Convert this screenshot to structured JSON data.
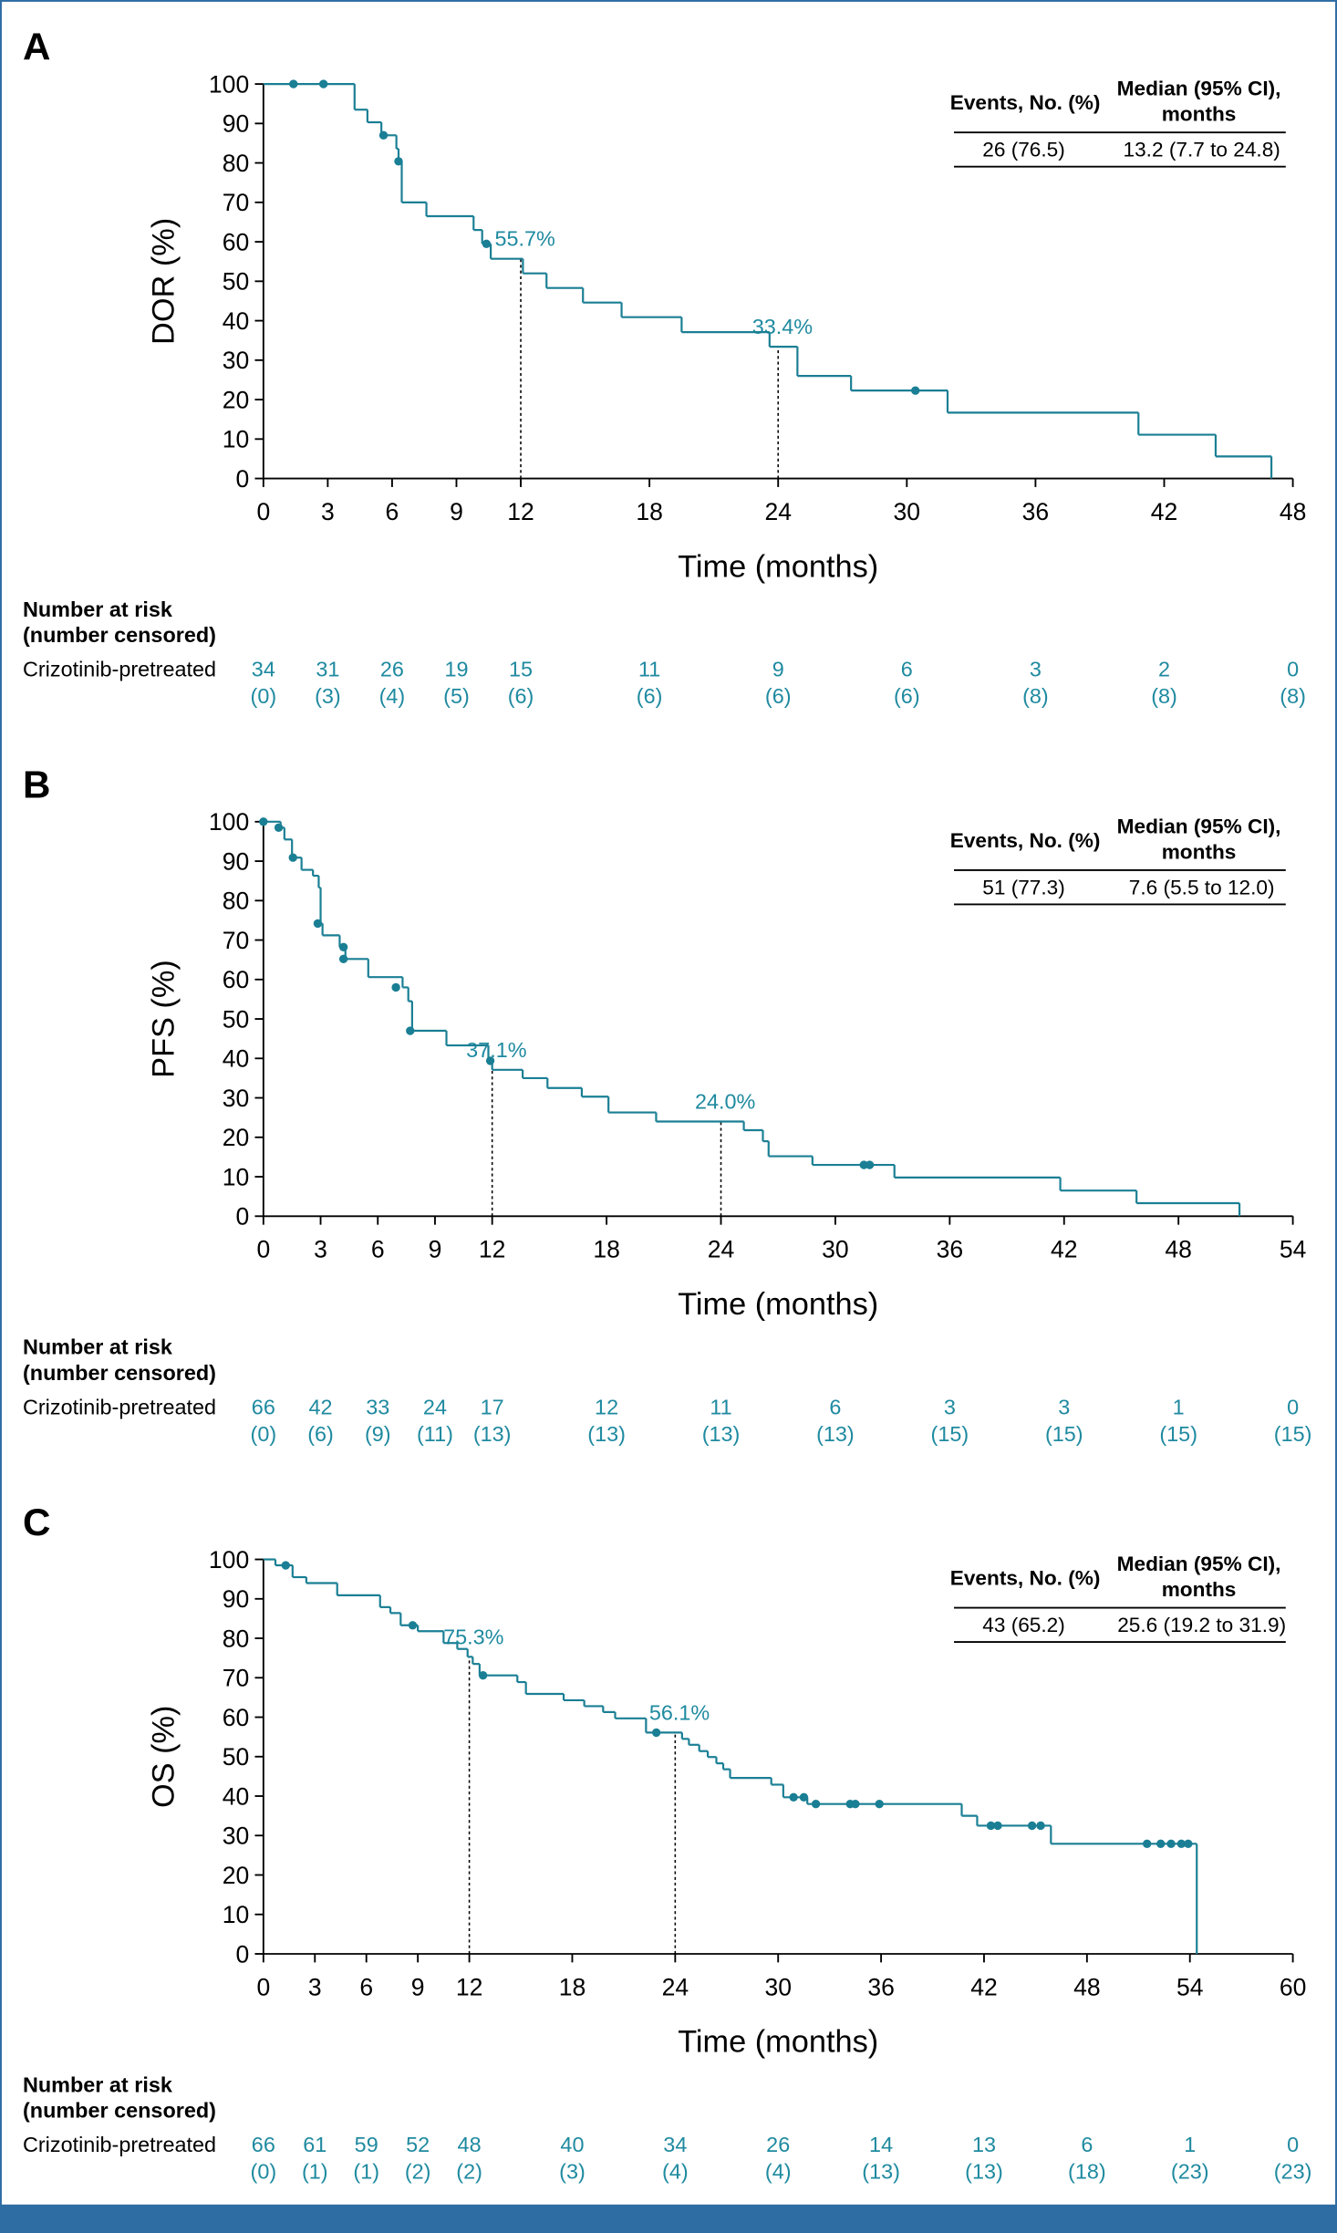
{
  "chart_data": [
    {
      "type": "km",
      "panel": "A",
      "ylabel": "DOR (%)",
      "xlabel": "Time (months)",
      "color": "#1a7f94",
      "xlim": [
        0,
        48
      ],
      "xticks": [
        0,
        3,
        6,
        9,
        12,
        18,
        24,
        30,
        36,
        42,
        48
      ],
      "ylim": [
        0,
        100
      ],
      "yticks": [
        0,
        10,
        20,
        30,
        40,
        50,
        60,
        70,
        80,
        90,
        100
      ],
      "series": [
        {
          "x": [
            0,
            4.25,
            4.85,
            5.5,
            6.2,
            6.3,
            6.45,
            7.6,
            9.8,
            10.2,
            10.6,
            12.1,
            13.2,
            14.9,
            16.7,
            19.5,
            23.6,
            24.9,
            27.4,
            31.9,
            40.8,
            44.4,
            47
          ],
          "values": [
            100,
            93.5,
            90.3,
            87,
            83.6,
            80.4,
            70,
            66.5,
            63,
            59.5,
            55.7,
            52,
            48.3,
            44.6,
            40.9,
            37.1,
            33.4,
            26,
            22.3,
            16.7,
            11.1,
            5.6,
            0
          ]
        }
      ],
      "censored": {
        "x": [
          1.4,
          2.8,
          5.6,
          6.3,
          10.4,
          30.4
        ],
        "values": [
          100,
          100,
          87,
          80.4,
          59.5,
          22.3
        ]
      },
      "medians": [
        {
          "x": 12,
          "value": 55.7,
          "label": "55.7%"
        },
        {
          "x": 24,
          "value": 33.4,
          "label": "33.4%"
        }
      ],
      "summary": {
        "headers": [
          "Events, No. (%)",
          "Median (95% CI),",
          "months"
        ],
        "values": [
          "26 (76.5)",
          "13.2 (7.7 to 24.8)"
        ]
      },
      "risk": {
        "title": [
          "Number at risk",
          "(number censored)"
        ],
        "group": "Crizotinib-pretreated",
        "at_risk": [
          34,
          31,
          26,
          19,
          15,
          11,
          9,
          6,
          3,
          2,
          0
        ],
        "censored": [
          "(0)",
          "(3)",
          "(4)",
          "(5)",
          "(6)",
          "(6)",
          "(6)",
          "(6)",
          "(8)",
          "(8)",
          "(8)"
        ]
      }
    },
    {
      "type": "km",
      "panel": "B",
      "ylabel": "PFS (%)",
      "xlabel": "Time (months)",
      "color": "#1a7f94",
      "xlim": [
        0,
        54
      ],
      "xticks": [
        0,
        3,
        6,
        9,
        12,
        18,
        24,
        30,
        36,
        42,
        48,
        54
      ],
      "ylim": [
        0,
        100
      ],
      "yticks": [
        0,
        10,
        20,
        30,
        40,
        50,
        60,
        70,
        80,
        90,
        100
      ],
      "series": [
        {
          "x": [
            0,
            0.9,
            1.1,
            1.5,
            2.0,
            2.6,
            2.9,
            3.0,
            3.1,
            4.0,
            4.3,
            5.5,
            7.3,
            7.6,
            7.8,
            9.6,
            11.8,
            12.0,
            13.6,
            14.9,
            16.7,
            18.1,
            20.6,
            25.2,
            26.2,
            26.5,
            28.8,
            33.1,
            41.8,
            45.8,
            51.2
          ],
          "values": [
            100,
            98.5,
            95.5,
            90.9,
            87.8,
            86.3,
            83.3,
            74.2,
            71.2,
            68.2,
            65.2,
            60.6,
            58,
            54.5,
            47,
            43.3,
            39.4,
            37.1,
            35,
            32.5,
            30.3,
            26.3,
            24,
            21.8,
            19,
            15.2,
            13,
            9.8,
            6.5,
            3.3,
            0
          ]
        }
      ],
      "censored": {
        "x": [
          0,
          0.8,
          1.55,
          2.85,
          4.2,
          4.2,
          6.95,
          7.7,
          11.9,
          31.5,
          31.8
        ],
        "values": [
          100,
          98.5,
          90.9,
          74.2,
          68.2,
          65.2,
          58,
          47,
          39.4,
          13,
          13
        ]
      },
      "medians": [
        {
          "x": 12,
          "value": 37.1,
          "label": "37.1%"
        },
        {
          "x": 24,
          "value": 24.0,
          "label": "24.0%"
        }
      ],
      "summary": {
        "headers": [
          "Events, No. (%)",
          "Median (95% CI),",
          "months"
        ],
        "values": [
          "51 (77.3)",
          "7.6 (5.5 to 12.0)"
        ]
      },
      "risk": {
        "title": [
          "Number at risk",
          "(number censored)"
        ],
        "group": "Crizotinib-pretreated",
        "at_risk": [
          66,
          42,
          33,
          24,
          17,
          12,
          11,
          6,
          3,
          3,
          1,
          0
        ],
        "censored": [
          "(0)",
          "(6)",
          "(9)",
          "(11)",
          "(13)",
          "(13)",
          "(13)",
          "(13)",
          "(15)",
          "(15)",
          "(15)",
          "(15)"
        ]
      }
    },
    {
      "type": "km",
      "panel": "C",
      "ylabel": "OS (%)",
      "xlabel": "Time (months)",
      "color": "#1a7f94",
      "xlim": [
        0,
        60
      ],
      "xticks": [
        0,
        3,
        6,
        9,
        12,
        18,
        24,
        30,
        36,
        42,
        48,
        54,
        60
      ],
      "ylim": [
        0,
        100
      ],
      "yticks": [
        0,
        10,
        20,
        30,
        40,
        50,
        60,
        70,
        80,
        90,
        100
      ],
      "series": [
        {
          "x": [
            0,
            0.7,
            1.7,
            2.5,
            4.3,
            6.8,
            7.4,
            8.0,
            9.0,
            10.5,
            11.3,
            11.9,
            12.2,
            12.6,
            14.8,
            15.3,
            17.5,
            18.7,
            19.8,
            20.5,
            22.3,
            24.4,
            24.8,
            25.4,
            25.9,
            26.4,
            26.8,
            27.2,
            29.6,
            30.3,
            31.7,
            40.7,
            41.6,
            45.9,
            54.4
          ],
          "values": [
            100,
            98.5,
            95.5,
            94,
            90.9,
            87.9,
            86.4,
            83.3,
            81.8,
            78.8,
            77.3,
            75.3,
            73.5,
            70.6,
            68.9,
            65.9,
            64.3,
            62.8,
            61.3,
            59.7,
            56.1,
            54.5,
            53,
            51.4,
            49.9,
            48.3,
            46.8,
            44.6,
            42.9,
            39.7,
            38,
            35,
            32.5,
            27.9,
            0
          ]
        }
      ],
      "censored": {
        "x": [
          1.3,
          8.7,
          12.8,
          22.9,
          30.9,
          31.5,
          32.2,
          34.2,
          34.5,
          35.9,
          42.4,
          42.8,
          44.8,
          45.3,
          51.5,
          52.3,
          52.9,
          53.5,
          53.9
        ],
        "values": [
          98.5,
          83.3,
          70.6,
          56.1,
          39.7,
          39.7,
          38,
          38,
          38,
          38,
          32.5,
          32.5,
          32.5,
          32.5,
          27.9,
          27.9,
          27.9,
          27.9,
          27.9
        ]
      },
      "medians": [
        {
          "x": 12,
          "value": 75.3,
          "label": "75.3%"
        },
        {
          "x": 24,
          "value": 56.1,
          "label": "56.1%"
        }
      ],
      "summary": {
        "headers": [
          "Events, No. (%)",
          "Median (95% CI),",
          "months"
        ],
        "values": [
          "43 (65.2)",
          "25.6 (19.2 to 31.9)"
        ]
      },
      "risk": {
        "title": [
          "Number at risk",
          "(number censored)"
        ],
        "group": "Crizotinib-pretreated",
        "at_risk": [
          66,
          61,
          59,
          52,
          48,
          40,
          34,
          26,
          14,
          13,
          6,
          1,
          0
        ],
        "censored": [
          "(0)",
          "(1)",
          "(1)",
          "(2)",
          "(2)",
          "(3)",
          "(4)",
          "(4)",
          "(13)",
          "(13)",
          "(18)",
          "(23)",
          "(23)"
        ]
      }
    }
  ]
}
